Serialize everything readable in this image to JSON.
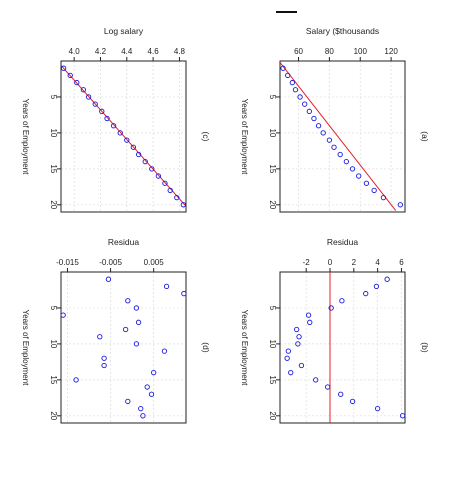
{
  "chart_data": [
    {
      "type": "scatter",
      "panel_label": "(c)",
      "title": "Log salary",
      "ylabel": "Years of Employment",
      "xlim": [
        3.9,
        4.85
      ],
      "ylim": [
        0,
        21
      ],
      "y_reversed": true,
      "x_ticks": [
        4.0,
        4.2,
        4.4,
        4.6,
        4.8
      ],
      "x_tick_labels": [
        "4.0",
        "4.2",
        "4.4",
        "4.6",
        "4.8"
      ],
      "y_ticks": [
        5,
        10,
        15,
        20
      ],
      "y_tick_labels": [
        "5",
        "10",
        "15",
        "20"
      ],
      "grid": true,
      "points": [
        {
          "x": 3.92,
          "y": 1
        },
        {
          "x": 3.97,
          "y": 2
        },
        {
          "x": 4.02,
          "y": 3
        },
        {
          "x": 4.07,
          "y": 4
        },
        {
          "x": 4.11,
          "y": 5
        },
        {
          "x": 4.16,
          "y": 6
        },
        {
          "x": 4.21,
          "y": 7
        },
        {
          "x": 4.25,
          "y": 8
        },
        {
          "x": 4.3,
          "y": 9
        },
        {
          "x": 4.35,
          "y": 10
        },
        {
          "x": 4.4,
          "y": 11
        },
        {
          "x": 4.45,
          "y": 12
        },
        {
          "x": 4.49,
          "y": 13
        },
        {
          "x": 4.54,
          "y": 14
        },
        {
          "x": 4.59,
          "y": 15
        },
        {
          "x": 4.64,
          "y": 16
        },
        {
          "x": 4.69,
          "y": 17
        },
        {
          "x": 4.73,
          "y": 18
        },
        {
          "x": 4.78,
          "y": 19
        },
        {
          "x": 4.83,
          "y": 20
        }
      ],
      "line": {
        "x": [
          3.9,
          4.85
        ],
        "y": [
          0.6,
          20.2
        ]
      }
    },
    {
      "type": "scatter",
      "panel_label": "(a)",
      "title": "Salary ($thousands",
      "ylabel": "Years of Employment",
      "xlim": [
        48,
        129
      ],
      "ylim": [
        0,
        21
      ],
      "y_reversed": true,
      "x_ticks": [
        60,
        80,
        100,
        120
      ],
      "x_tick_labels": [
        "60",
        "80",
        "100",
        "120"
      ],
      "y_ticks": [
        5,
        10,
        15,
        20
      ],
      "y_tick_labels": [
        "5",
        "10",
        "15",
        "20"
      ],
      "grid": true,
      "points": [
        {
          "x": 50,
          "y": 1
        },
        {
          "x": 53,
          "y": 2
        },
        {
          "x": 56,
          "y": 3
        },
        {
          "x": 58,
          "y": 4
        },
        {
          "x": 61,
          "y": 5
        },
        {
          "x": 64,
          "y": 6
        },
        {
          "x": 67,
          "y": 7
        },
        {
          "x": 70,
          "y": 8
        },
        {
          "x": 73,
          "y": 9
        },
        {
          "x": 76,
          "y": 10
        },
        {
          "x": 80,
          "y": 11
        },
        {
          "x": 83,
          "y": 12
        },
        {
          "x": 87,
          "y": 13
        },
        {
          "x": 91,
          "y": 14
        },
        {
          "x": 95,
          "y": 15
        },
        {
          "x": 99,
          "y": 16
        },
        {
          "x": 104,
          "y": 17
        },
        {
          "x": 109,
          "y": 18
        },
        {
          "x": 115,
          "y": 19
        },
        {
          "x": 126,
          "y": 20
        }
      ],
      "line": {
        "x": [
          48,
          123
        ],
        "y": [
          0.2,
          20.8
        ]
      }
    },
    {
      "type": "scatter",
      "panel_label": "(d)",
      "title": "Residua",
      "ylabel": "Years of Employment",
      "xlim": [
        -0.0165,
        0.0125
      ],
      "ylim": [
        0,
        21
      ],
      "y_reversed": true,
      "x_ticks": [
        -0.015,
        -0.005,
        0.005
      ],
      "x_tick_labels": [
        "-0.015",
        "-0.005",
        "0.005"
      ],
      "y_ticks": [
        5,
        10,
        15,
        20
      ],
      "y_tick_labels": [
        "5",
        "10",
        "15",
        "20"
      ],
      "grid": true,
      "points": [
        {
          "x": -0.0055,
          "y": 1
        },
        {
          "x": 0.008,
          "y": 2
        },
        {
          "x": 0.012,
          "y": 3
        },
        {
          "x": -0.001,
          "y": 4
        },
        {
          "x": 0.001,
          "y": 5
        },
        {
          "x": -0.016,
          "y": 6
        },
        {
          "x": 0.0015,
          "y": 7
        },
        {
          "x": -0.0015,
          "y": 8
        },
        {
          "x": -0.0075,
          "y": 9
        },
        {
          "x": 0.001,
          "y": 10
        },
        {
          "x": 0.0075,
          "y": 11
        },
        {
          "x": -0.0065,
          "y": 12
        },
        {
          "x": -0.0065,
          "y": 13
        },
        {
          "x": 0.005,
          "y": 14
        },
        {
          "x": -0.013,
          "y": 15
        },
        {
          "x": 0.0035,
          "y": 16
        },
        {
          "x": 0.0045,
          "y": 17
        },
        {
          "x": -0.001,
          "y": 18
        },
        {
          "x": 0.002,
          "y": 19
        },
        {
          "x": 0.0025,
          "y": 20
        }
      ]
    },
    {
      "type": "scatter",
      "panel_label": "(b)",
      "title": "Residua",
      "ylabel": "Years of Employment",
      "xlim": [
        -4.2,
        6.3
      ],
      "ylim": [
        0,
        21
      ],
      "y_reversed": true,
      "x_ticks": [
        -2,
        0,
        2,
        4,
        6
      ],
      "x_tick_labels": [
        "-2",
        "0",
        "2",
        "4",
        "6"
      ],
      "y_ticks": [
        5,
        10,
        15,
        20
      ],
      "y_tick_labels": [
        "5",
        "10",
        "15",
        "20"
      ],
      "grid": true,
      "points": [
        {
          "x": 4.8,
          "y": 1
        },
        {
          "x": 3.9,
          "y": 2
        },
        {
          "x": 3.0,
          "y": 3
        },
        {
          "x": 1.0,
          "y": 4
        },
        {
          "x": 0.1,
          "y": 5
        },
        {
          "x": -1.8,
          "y": 6
        },
        {
          "x": -1.7,
          "y": 7
        },
        {
          "x": -2.8,
          "y": 8
        },
        {
          "x": -2.6,
          "y": 9
        },
        {
          "x": -2.7,
          "y": 10
        },
        {
          "x": -3.5,
          "y": 11
        },
        {
          "x": -3.6,
          "y": 12
        },
        {
          "x": -2.4,
          "y": 13
        },
        {
          "x": -3.3,
          "y": 14
        },
        {
          "x": -1.2,
          "y": 15
        },
        {
          "x": -0.2,
          "y": 16
        },
        {
          "x": 0.9,
          "y": 17
        },
        {
          "x": 1.9,
          "y": 18
        },
        {
          "x": 4.0,
          "y": 19
        },
        {
          "x": 6.1,
          "y": 20
        }
      ],
      "vline": 0
    }
  ],
  "colors": {
    "points": "#1a1adf",
    "line": "#e0202a",
    "grid": "#dddddd",
    "axis": "#222222"
  }
}
